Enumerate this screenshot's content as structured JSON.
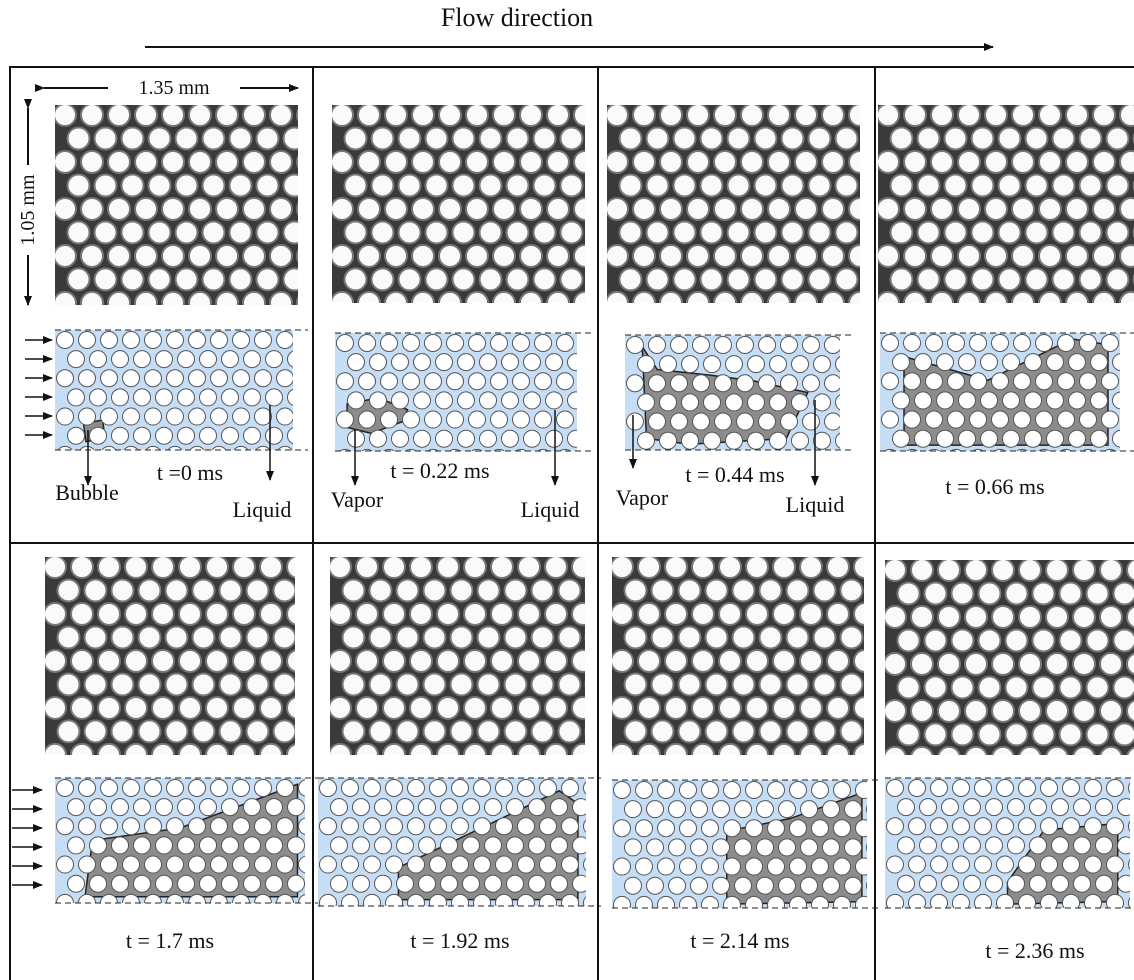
{
  "header": {
    "title": "Flow direction"
  },
  "scale": {
    "width": "1.35 mm",
    "height": "1.05 mm"
  },
  "panels": [
    {
      "time": "t =0 ms",
      "labels": [
        "Bubble",
        "Liquid"
      ]
    },
    {
      "time": "t = 0.22 ms",
      "labels": [
        "Vapor",
        "Liquid"
      ]
    },
    {
      "time": "t = 0.44 ms",
      "labels": [
        "Vapor",
        "Liquid"
      ]
    },
    {
      "time": "t = 0.66 ms",
      "labels": []
    },
    {
      "time": "t = 1.7 ms",
      "labels": []
    },
    {
      "time": "t = 1.92 ms",
      "labels": []
    },
    {
      "time": "t = 2.14 ms",
      "labels": []
    },
    {
      "time": "t = 2.36 ms",
      "labels": []
    }
  ]
}
